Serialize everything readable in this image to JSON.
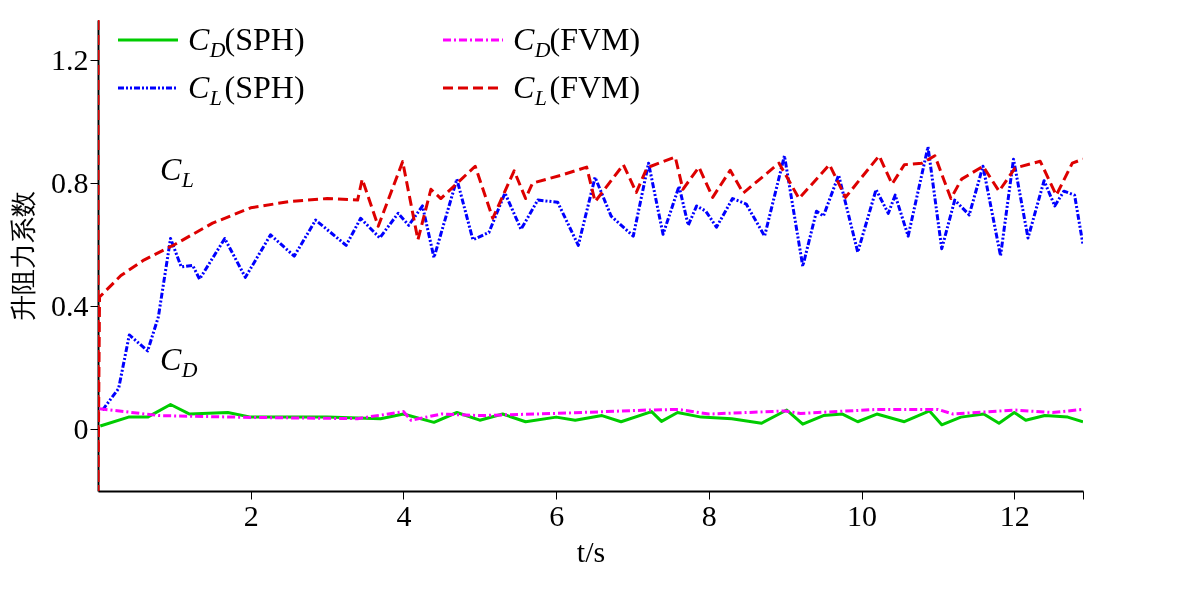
{
  "chart_data": {
    "type": "line",
    "xlabel": "t/s",
    "ylabel": "升阻力系数",
    "xlim": [
      0,
      12.9
    ],
    "xticks": [
      2,
      4,
      6,
      8,
      10,
      12,
      {
        "value": 12.9,
        "label": null
      }
    ],
    "ylim": [
      -0.2,
      1.33
    ],
    "yticks": [
      0,
      0.4,
      0.8,
      1.2
    ],
    "grid": false,
    "legend": "top left",
    "annotations": [
      "C$_{L}$",
      "C$_{D}$"
    ],
    "series": [
      {
        "name": "C$_{D}$(SPH)",
        "color": "#00cc00",
        "line_style": "solid",
        "x": [
          0.03,
          0.4,
          0.65,
          0.95,
          1.2,
          1.7,
          2.0,
          3.0,
          3.7,
          4.0,
          4.4,
          4.7,
          5.0,
          5.3,
          5.6,
          6.0,
          6.25,
          6.6,
          6.85,
          7.25,
          7.38,
          7.59,
          7.9,
          8.3,
          8.69,
          9.02,
          9.23,
          9.5,
          9.75,
          9.95,
          10.2,
          10.56,
          10.89,
          11.05,
          11.3,
          11.6,
          11.8,
          12.0,
          12.15,
          12.4,
          12.7,
          12.9
        ],
        "values": [
          0.011,
          0.04,
          0.04,
          0.081,
          0.05,
          0.055,
          0.04,
          0.04,
          0.035,
          0.05,
          0.023,
          0.055,
          0.03,
          0.05,
          0.025,
          0.04,
          0.03,
          0.045,
          0.025,
          0.058,
          0.026,
          0.055,
          0.04,
          0.035,
          0.02,
          0.063,
          0.017,
          0.045,
          0.05,
          0.025,
          0.05,
          0.025,
          0.06,
          0.015,
          0.04,
          0.05,
          0.02,
          0.055,
          0.03,
          0.045,
          0.04,
          0.025
        ]
      },
      {
        "name": "C$_{L}$(SPH)",
        "color": "#0000ff",
        "line_style": "dashdotdot",
        "x": [
          0.06,
          0.27,
          0.41,
          0.65,
          0.79,
          0.95,
          1.09,
          1.24,
          1.33,
          1.66,
          1.93,
          2.26,
          2.57,
          2.85,
          3.25,
          3.44,
          3.69,
          3.93,
          4.07,
          4.25,
          4.4,
          4.7,
          4.91,
          5.12,
          5.33,
          5.54,
          5.76,
          6.02,
          6.29,
          6.51,
          6.72,
          6.88,
          7.01,
          7.21,
          7.4,
          7.61,
          7.73,
          7.84,
          7.96,
          8.1,
          8.31,
          8.49,
          8.73,
          8.99,
          9.23,
          9.41,
          9.5,
          9.7,
          9.95,
          10.19,
          10.35,
          10.44,
          10.61,
          10.87,
          11.05,
          11.22,
          11.41,
          11.59,
          11.82,
          11.99,
          12.18,
          12.39,
          12.53,
          12.65,
          12.79,
          12.9
        ],
        "values": [
          0.063,
          0.133,
          0.307,
          0.255,
          0.365,
          0.62,
          0.528,
          0.533,
          0.488,
          0.62,
          0.494,
          0.632,
          0.563,
          0.68,
          0.598,
          0.686,
          0.622,
          0.702,
          0.663,
          0.726,
          0.558,
          0.813,
          0.616,
          0.64,
          0.768,
          0.65,
          0.745,
          0.738,
          0.598,
          0.819,
          0.693,
          0.657,
          0.628,
          0.865,
          0.634,
          0.79,
          0.663,
          0.726,
          0.709,
          0.657,
          0.75,
          0.732,
          0.628,
          0.889,
          0.53,
          0.709,
          0.693,
          0.826,
          0.576,
          0.779,
          0.702,
          0.761,
          0.628,
          0.918,
          0.587,
          0.745,
          0.697,
          0.855,
          0.564,
          0.878,
          0.622,
          0.808,
          0.726,
          0.774,
          0.761,
          0.6
        ]
      },
      {
        "name": "C$_{D}$(FVM)",
        "color": "#ff00ff",
        "line_style": "dashdot",
        "x": [
          0.02,
          0.8,
          2,
          3.4,
          4,
          4.1,
          4.5,
          5,
          6,
          7.2,
          7.6,
          8,
          9,
          9.2,
          10.2,
          11,
          11.2,
          12,
          12.5,
          12.9
        ],
        "values": [
          0.067,
          0.045,
          0.039,
          0.035,
          0.058,
          0.03,
          0.05,
          0.045,
          0.052,
          0.063,
          0.065,
          0.05,
          0.06,
          0.052,
          0.065,
          0.065,
          0.05,
          0.063,
          0.055,
          0.065
        ]
      },
      {
        "name": "C$_{L}$(FVM)",
        "color": "#dd0000",
        "line_style": "dashed",
        "x": [
          0,
          0,
          0.02,
          0.3,
          0.6,
          1,
          1.5,
          2,
          2.5,
          3,
          3.4,
          3.46,
          3.67,
          3.99,
          4.19,
          4.36,
          4.49,
          4.94,
          5.17,
          5.45,
          5.6,
          5.69,
          6.07,
          6.4,
          6.51,
          6.88,
          7.05,
          7.19,
          7.56,
          7.66,
          7.87,
          8.05,
          8.28,
          8.45,
          8.92,
          9.18,
          9.58,
          9.79,
          10.23,
          10.4,
          10.56,
          10.79,
          10.96,
          11.17,
          11.31,
          11.59,
          11.8,
          12.01,
          12.34,
          12.55,
          12.76,
          12.9
        ],
        "values": [
          1.33,
          -0.2,
          0.43,
          0.5,
          0.55,
          0.6,
          0.67,
          0.72,
          0.74,
          0.75,
          0.745,
          0.813,
          0.66,
          0.87,
          0.616,
          0.78,
          0.75,
          0.855,
          0.686,
          0.84,
          0.75,
          0.8,
          0.826,
          0.852,
          0.74,
          0.86,
          0.77,
          0.85,
          0.885,
          0.78,
          0.852,
          0.754,
          0.842,
          0.768,
          0.865,
          0.75,
          0.86,
          0.754,
          0.889,
          0.797,
          0.86,
          0.865,
          0.889,
          0.75,
          0.813,
          0.855,
          0.774,
          0.849,
          0.871,
          0.761,
          0.865,
          0.878
        ]
      }
    ]
  }
}
